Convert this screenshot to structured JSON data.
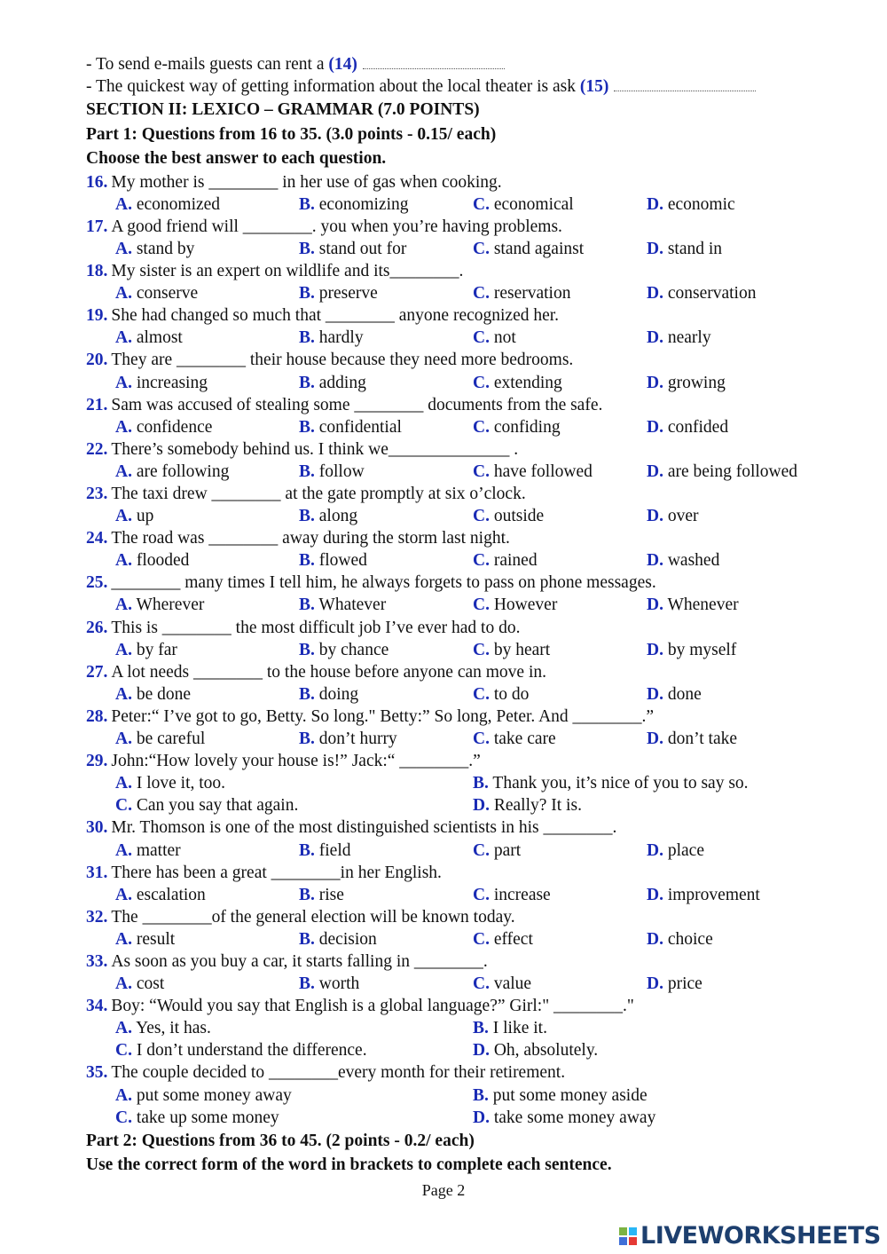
{
  "intro": [
    {
      "text": "- To send e-mails guests can rent a ",
      "num": "(14)"
    },
    {
      "text": "- The quickest way of getting information about the local theater is ask ",
      "num": "(15)"
    }
  ],
  "section_title": "SECTION II: LEXICO – GRAMMAR (7.0 POINTS)",
  "part1_title": "Part 1: Questions from 16 to 35. (3.0 points - 0.15/ each)",
  "part1_instruction": "Choose the best answer to each question.",
  "option_letters": [
    "A.",
    "B.",
    "C.",
    "D."
  ],
  "questions": [
    {
      "num": "16.",
      "stem": "My mother is ________ in her use of gas when cooking.",
      "options": [
        "economized",
        "economizing",
        "economical",
        "economic"
      ]
    },
    {
      "num": "17.",
      "stem": "A good friend will ________. you when you’re having problems.",
      "options": [
        "stand by",
        "stand out for",
        "stand against",
        "stand in"
      ]
    },
    {
      "num": "18.",
      "stem": "My sister is an expert on wildlife and its________.",
      "options": [
        "conserve",
        "preserve",
        "reservation",
        "conservation"
      ]
    },
    {
      "num": "19.",
      "stem": "She had changed so much that ________ anyone recognized her.",
      "options": [
        "almost",
        "hardly",
        "not",
        "nearly"
      ]
    },
    {
      "num": "20.",
      "stem": "They are ________ their house because they need more bedrooms.",
      "options": [
        "increasing",
        "adding",
        "extending",
        "growing"
      ]
    },
    {
      "num": "21.",
      "stem": "Sam was accused of stealing some ________ documents from the safe.",
      "options": [
        "confidence",
        "confidential",
        "confiding",
        "confided"
      ]
    },
    {
      "num": "22.",
      "stem": "There’s somebody behind us. I think we______________ .",
      "options": [
        "are following",
        "follow",
        "have followed",
        "are being followed"
      ]
    },
    {
      "num": "23.",
      "stem": "The taxi drew ________ at the gate promptly at six o’clock.",
      "options": [
        "up",
        "along",
        "outside",
        "over"
      ]
    },
    {
      "num": "24.",
      "stem": "The road was ________ away during the storm last night.",
      "options": [
        "flooded",
        "flowed",
        "rained",
        "washed"
      ]
    },
    {
      "num": "25.",
      "stem": "________ many times I tell him, he always forgets to pass on phone messages.",
      "options": [
        "Wherever",
        "Whatever",
        "However",
        "Whenever"
      ]
    },
    {
      "num": "26.",
      "stem": "This is ________ the most difficult job I’ve ever had to do.",
      "options": [
        "by far",
        "by chance",
        "by heart",
        "by myself"
      ]
    },
    {
      "num": "27.",
      "stem": "A lot needs ________ to the house before anyone can move in.",
      "options": [
        "be done",
        "doing",
        "to do",
        "done"
      ]
    },
    {
      "num": "28.",
      "stem": "Peter:“ I’ve got to go, Betty. So long.\"  Betty:” So long, Peter. And ________.”",
      "options": [
        "be careful",
        "don’t hurry",
        "take care",
        "don’t take"
      ]
    },
    {
      "num": "29.",
      "stem": "John:“How lovely your house is!”  Jack:“ ________.”",
      "options": [
        "I love it, too.",
        "Thank you, it’s nice of you to say so.",
        "Can you say that again.",
        "Really? It is."
      ],
      "two_col": true
    },
    {
      "num": "30.",
      "stem": "Mr. Thomson is one of the most distinguished scientists in his ________.",
      "options": [
        "matter",
        "field",
        "part",
        "place"
      ]
    },
    {
      "num": "31.",
      "stem": "There has been a great ________in her English.",
      "options": [
        "escalation",
        "rise",
        "increase",
        "improvement"
      ]
    },
    {
      "num": "32.",
      "stem": "The ________of the general election will be known today.",
      "options": [
        "result",
        "decision",
        "effect",
        "choice"
      ]
    },
    {
      "num": "33.",
      "stem": "As soon as you buy a car, it starts falling in ________.",
      "options": [
        "cost",
        "worth",
        "value",
        "price"
      ]
    },
    {
      "num": "34.",
      "stem": "Boy: “Would you say that English is a global language?”  Girl:\" ________.\"",
      "options": [
        "Yes, it has.",
        "I like it.",
        "I don’t understand the difference.",
        "Oh, absolutely."
      ],
      "two_col": true
    },
    {
      "num": "35.",
      "stem": "The couple decided to ________every month for their retirement.",
      "options": [
        "put some money away",
        "put some money aside",
        "take up some money",
        "take some money away"
      ],
      "two_col": true
    }
  ],
  "part2_title": "Part 2: Questions from 36 to 45. (2 points - 0.2/ each)",
  "part2_instruction": "Use the correct form of the word in brackets to complete each sentence.",
  "footer": "Page 2",
  "logo": {
    "text": "LIVEWORKSHEETS",
    "squares": [
      "L",
      "I",
      "V",
      "E"
    ],
    "colors": [
      "#7cb342",
      "#29b6f6",
      "#3f6fd8",
      "#e53935"
    ]
  }
}
